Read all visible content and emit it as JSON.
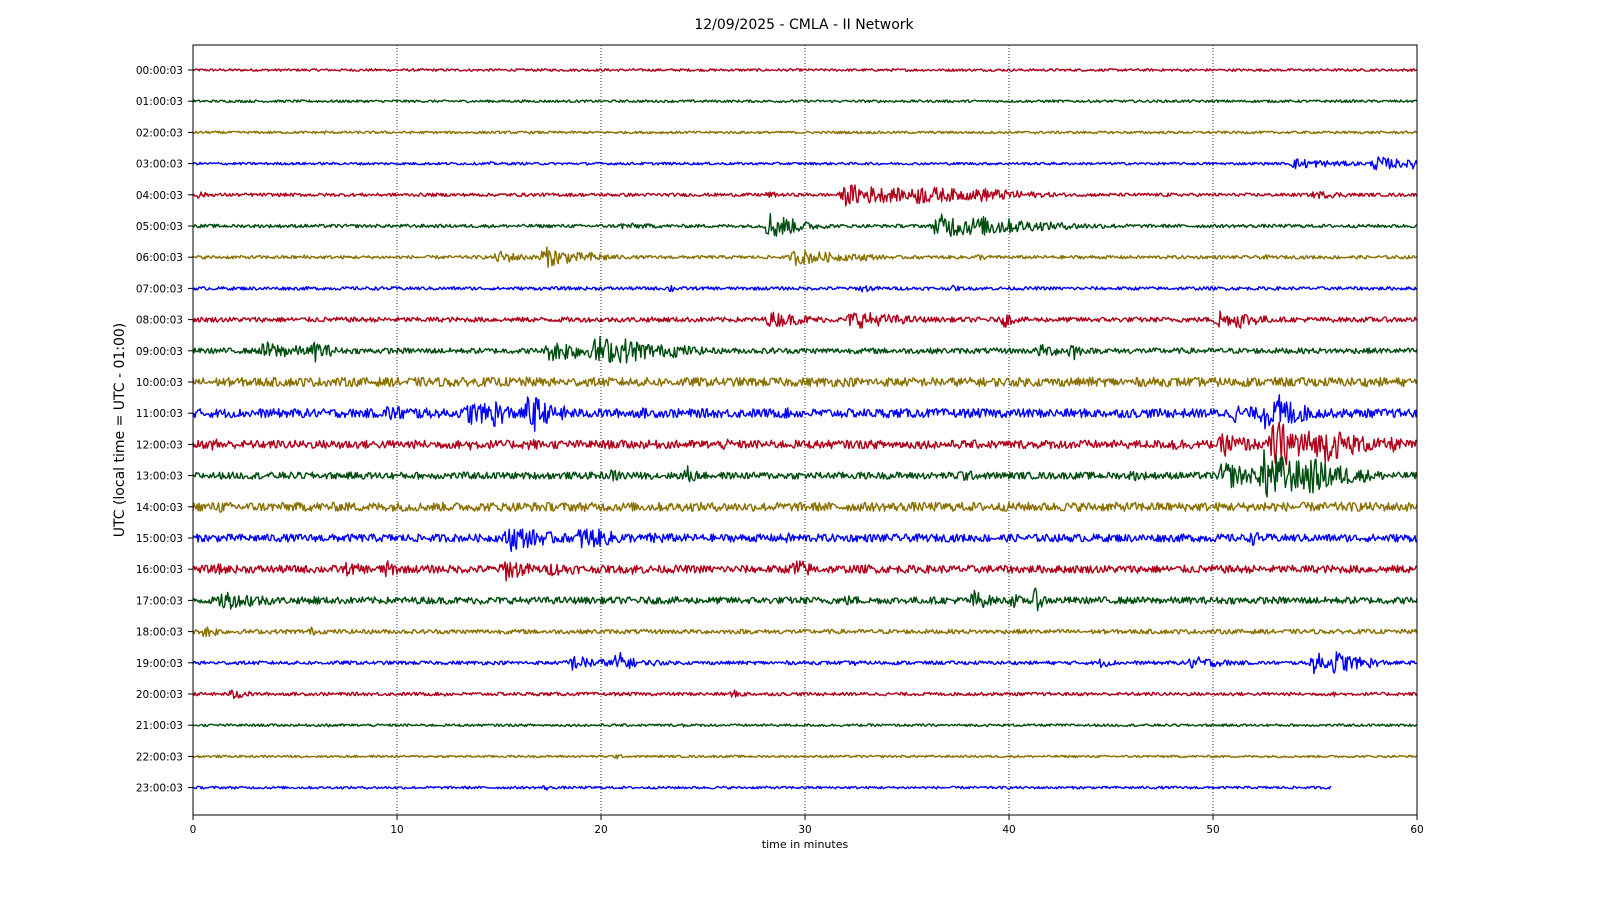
{
  "chart_data": {
    "type": "line",
    "title": "12/09/2025 - CMLA - II Network",
    "xlabel": "time in minutes",
    "ylabel": "UTC (local time = UTC - 01:00)",
    "xlim": [
      0,
      60
    ],
    "x_ticks": [
      0,
      10,
      20,
      30,
      40,
      50,
      60
    ],
    "grid": "vertical dotted lines at x ticks",
    "last_row_end_minute": 55.8,
    "color_cycle": [
      "#b0001a",
      "#004d0f",
      "#8a7000",
      "#0000ff"
    ],
    "series": [
      {
        "label": "00:00:03",
        "base_amplitude": 0.09,
        "events": []
      },
      {
        "label": "01:00:03",
        "base_amplitude": 0.09,
        "events": []
      },
      {
        "label": "02:00:03",
        "base_amplitude": 0.09,
        "events": [
          {
            "t": 6.5,
            "amp": 0.15,
            "dur": 0.3
          }
        ]
      },
      {
        "label": "03:00:03",
        "base_amplitude": 0.09,
        "events": [
          {
            "t": 14.6,
            "amp": 0.15,
            "dur": 0.3
          },
          {
            "t": 54.0,
            "amp": 0.4,
            "dur": 3.0
          },
          {
            "t": 58.0,
            "amp": 0.55,
            "dur": 2.0
          },
          {
            "t": 59.8,
            "amp": 0.5,
            "dur": 1.0
          }
        ]
      },
      {
        "label": "04:00:03",
        "base_amplitude": 0.12,
        "events": [
          {
            "t": 0.3,
            "amp": 0.3,
            "dur": 0.6
          },
          {
            "t": 28.2,
            "amp": 0.25,
            "dur": 1.0
          },
          {
            "t": 32.0,
            "amp": 0.8,
            "dur": 5.0
          },
          {
            "t": 35.5,
            "amp": 0.7,
            "dur": 4.0
          },
          {
            "t": 38.5,
            "amp": 0.55,
            "dur": 3.0
          },
          {
            "t": 47.8,
            "amp": 0.18,
            "dur": 0.4
          },
          {
            "t": 55.0,
            "amp": 0.3,
            "dur": 2.5
          }
        ]
      },
      {
        "label": "05:00:03",
        "base_amplitude": 0.12,
        "events": [
          {
            "t": 21.0,
            "amp": 0.25,
            "dur": 3.0
          },
          {
            "t": 28.3,
            "amp": 1.1,
            "dur": 1.5
          },
          {
            "t": 36.5,
            "amp": 0.9,
            "dur": 5.0
          },
          {
            "t": 38.8,
            "amp": 0.8,
            "dur": 3.0
          }
        ]
      },
      {
        "label": "06:00:03",
        "base_amplitude": 0.12,
        "events": [
          {
            "t": 5.5,
            "amp": 0.2,
            "dur": 0.5
          },
          {
            "t": 15.0,
            "amp": 0.5,
            "dur": 1.5
          },
          {
            "t": 17.2,
            "amp": 0.8,
            "dur": 2.0
          },
          {
            "t": 19.5,
            "amp": 0.4,
            "dur": 1.5
          },
          {
            "t": 29.5,
            "amp": 0.6,
            "dur": 3.0
          },
          {
            "t": 32.8,
            "amp": 0.3,
            "dur": 1.5
          },
          {
            "t": 38.5,
            "amp": 0.25,
            "dur": 1.0
          },
          {
            "t": 52.5,
            "amp": 0.2,
            "dur": 0.6
          }
        ]
      },
      {
        "label": "07:00:03",
        "base_amplitude": 0.12,
        "events": [
          {
            "t": 23.4,
            "amp": 0.35,
            "dur": 0.4
          },
          {
            "t": 32.8,
            "amp": 0.3,
            "dur": 1.0
          },
          {
            "t": 37.3,
            "amp": 0.25,
            "dur": 0.5
          }
        ]
      },
      {
        "label": "08:00:03",
        "base_amplitude": 0.18,
        "events": [
          {
            "t": 28.3,
            "amp": 0.6,
            "dur": 2.5
          },
          {
            "t": 32.3,
            "amp": 0.7,
            "dur": 3.0
          },
          {
            "t": 39.8,
            "amp": 0.6,
            "dur": 0.6
          },
          {
            "t": 50.3,
            "amp": 0.9,
            "dur": 0.6
          },
          {
            "t": 51.2,
            "amp": 0.7,
            "dur": 1.5
          }
        ]
      },
      {
        "label": "09:00:03",
        "base_amplitude": 0.2,
        "events": [
          {
            "t": 3.5,
            "amp": 0.7,
            "dur": 2.5
          },
          {
            "t": 6.0,
            "amp": 0.8,
            "dur": 1.0
          },
          {
            "t": 17.5,
            "amp": 0.8,
            "dur": 4.0
          },
          {
            "t": 19.8,
            "amp": 1.2,
            "dur": 2.0
          },
          {
            "t": 21.0,
            "amp": 1.0,
            "dur": 2.5
          },
          {
            "t": 23.5,
            "amp": 0.5,
            "dur": 2.5
          },
          {
            "t": 28.2,
            "amp": 0.3,
            "dur": 1.0
          },
          {
            "t": 41.5,
            "amp": 0.5,
            "dur": 2.0
          },
          {
            "t": 43.1,
            "amp": 0.9,
            "dur": 0.4
          }
        ]
      },
      {
        "label": "10:00:03",
        "base_amplitude": 0.32,
        "events": [
          {
            "t": 12.5,
            "amp": 0.4,
            "dur": 2.0
          },
          {
            "t": 16.0,
            "amp": 0.45,
            "dur": 1.5
          },
          {
            "t": 58.5,
            "amp": 0.3,
            "dur": 2.0
          }
        ]
      },
      {
        "label": "11:00:03",
        "base_amplitude": 0.32,
        "events": [
          {
            "t": 9.5,
            "amp": 0.6,
            "dur": 4.0
          },
          {
            "t": 13.5,
            "amp": 0.9,
            "dur": 3.0
          },
          {
            "t": 14.6,
            "amp": 1.3,
            "dur": 1.0
          },
          {
            "t": 16.5,
            "amp": 1.7,
            "dur": 1.0
          },
          {
            "t": 18.0,
            "amp": 0.6,
            "dur": 1.5
          },
          {
            "t": 22.0,
            "amp": 0.4,
            "dur": 2.0
          },
          {
            "t": 29.0,
            "amp": 0.4,
            "dur": 2.0
          },
          {
            "t": 51.0,
            "amp": 0.7,
            "dur": 2.0
          },
          {
            "t": 52.5,
            "amp": 1.2,
            "dur": 1.5
          },
          {
            "t": 53.2,
            "amp": 1.4,
            "dur": 1.5
          }
        ]
      },
      {
        "label": "12:00:03",
        "base_amplitude": 0.3,
        "events": [
          {
            "t": 1.0,
            "amp": 0.5,
            "dur": 1.5
          },
          {
            "t": 7.0,
            "amp": 0.45,
            "dur": 2.0
          },
          {
            "t": 13.5,
            "amp": 0.45,
            "dur": 2.0
          },
          {
            "t": 16.5,
            "amp": 0.5,
            "dur": 1.0
          },
          {
            "t": 26.0,
            "amp": 0.4,
            "dur": 2.0
          },
          {
            "t": 43.0,
            "amp": 0.45,
            "dur": 2.0
          },
          {
            "t": 48.0,
            "amp": 0.5,
            "dur": 2.0
          },
          {
            "t": 50.5,
            "amp": 0.9,
            "dur": 2.0
          },
          {
            "t": 53.0,
            "amp": 1.8,
            "dur": 3.0
          },
          {
            "t": 55.5,
            "amp": 1.3,
            "dur": 2.5
          },
          {
            "t": 58.8,
            "amp": 0.6,
            "dur": 1.0
          }
        ]
      },
      {
        "label": "13:00:03",
        "base_amplitude": 0.25,
        "events": [
          {
            "t": 20.5,
            "amp": 0.45,
            "dur": 2.0
          },
          {
            "t": 24.2,
            "amp": 0.8,
            "dur": 0.6
          },
          {
            "t": 37.5,
            "amp": 0.5,
            "dur": 1.5
          },
          {
            "t": 46.0,
            "amp": 0.4,
            "dur": 2.0
          },
          {
            "t": 50.5,
            "amp": 1.1,
            "dur": 2.0
          },
          {
            "t": 52.5,
            "amp": 1.9,
            "dur": 3.0
          },
          {
            "t": 54.5,
            "amp": 1.5,
            "dur": 2.5
          },
          {
            "t": 56.0,
            "amp": 0.8,
            "dur": 1.5
          }
        ]
      },
      {
        "label": "14:00:03",
        "base_amplitude": 0.32,
        "events": [
          {
            "t": 1.3,
            "amp": 0.5,
            "dur": 0.5
          },
          {
            "t": 7.5,
            "amp": 0.4,
            "dur": 0.5
          },
          {
            "t": 17.0,
            "amp": 0.4,
            "dur": 0.5
          },
          {
            "t": 30.0,
            "amp": 0.35,
            "dur": 1.0
          },
          {
            "t": 52.5,
            "amp": 0.5,
            "dur": 1.5
          }
        ]
      },
      {
        "label": "15:00:03",
        "base_amplitude": 0.28,
        "events": [
          {
            "t": 15.5,
            "amp": 1.0,
            "dur": 2.5
          },
          {
            "t": 19.0,
            "amp": 0.9,
            "dur": 2.5
          },
          {
            "t": 22.5,
            "amp": 0.5,
            "dur": 2.0
          },
          {
            "t": 29.0,
            "amp": 0.4,
            "dur": 2.5
          },
          {
            "t": 33.5,
            "amp": 0.35,
            "dur": 2.0
          },
          {
            "t": 52.0,
            "amp": 0.6,
            "dur": 0.5
          }
        ]
      },
      {
        "label": "16:00:03",
        "base_amplitude": 0.28,
        "events": [
          {
            "t": 1.3,
            "amp": 0.45,
            "dur": 1.0
          },
          {
            "t": 7.5,
            "amp": 0.5,
            "dur": 2.0
          },
          {
            "t": 9.4,
            "amp": 0.7,
            "dur": 1.0
          },
          {
            "t": 15.3,
            "amp": 0.9,
            "dur": 1.5
          },
          {
            "t": 17.5,
            "amp": 0.5,
            "dur": 3.0
          },
          {
            "t": 21.5,
            "amp": 0.4,
            "dur": 2.5
          },
          {
            "t": 29.5,
            "amp": 0.9,
            "dur": 1.0
          },
          {
            "t": 33.0,
            "amp": 0.4,
            "dur": 1.0
          }
        ]
      },
      {
        "label": "17:00:03",
        "base_amplitude": 0.25,
        "events": [
          {
            "t": 1.5,
            "amp": 0.9,
            "dur": 1.0
          },
          {
            "t": 2.5,
            "amp": 0.6,
            "dur": 2.0
          },
          {
            "t": 6.0,
            "amp": 0.4,
            "dur": 0.5
          },
          {
            "t": 14.0,
            "amp": 0.35,
            "dur": 1.0
          },
          {
            "t": 32.0,
            "amp": 0.4,
            "dur": 2.0
          },
          {
            "t": 38.3,
            "amp": 0.8,
            "dur": 1.0
          },
          {
            "t": 40.2,
            "amp": 0.6,
            "dur": 0.5
          },
          {
            "t": 41.3,
            "amp": 0.9,
            "dur": 0.5
          }
        ]
      },
      {
        "label": "18:00:03",
        "base_amplitude": 0.16,
        "events": [
          {
            "t": 0.6,
            "amp": 0.5,
            "dur": 1.0
          },
          {
            "t": 5.8,
            "amp": 0.35,
            "dur": 0.4
          },
          {
            "t": 14.0,
            "amp": 0.2,
            "dur": 1.0
          }
        ]
      },
      {
        "label": "19:00:03",
        "base_amplitude": 0.13,
        "events": [
          {
            "t": 18.5,
            "amp": 0.6,
            "dur": 2.0
          },
          {
            "t": 20.8,
            "amp": 0.9,
            "dur": 0.8
          },
          {
            "t": 22.5,
            "amp": 0.3,
            "dur": 1.0
          },
          {
            "t": 32.5,
            "amp": 0.25,
            "dur": 0.5
          },
          {
            "t": 44.5,
            "amp": 0.35,
            "dur": 1.0
          },
          {
            "t": 49.0,
            "amp": 0.5,
            "dur": 2.0
          },
          {
            "t": 55.0,
            "amp": 0.9,
            "dur": 0.8
          },
          {
            "t": 56.0,
            "amp": 0.9,
            "dur": 1.5
          },
          {
            "t": 57.7,
            "amp": 0.4,
            "dur": 1.0
          }
        ]
      },
      {
        "label": "20:00:03",
        "base_amplitude": 0.12,
        "events": [
          {
            "t": 2.0,
            "amp": 0.45,
            "dur": 0.8
          },
          {
            "t": 12.3,
            "amp": 0.2,
            "dur": 0.5
          },
          {
            "t": 26.5,
            "amp": 0.3,
            "dur": 1.0
          },
          {
            "t": 56.0,
            "amp": 0.2,
            "dur": 0.5
          }
        ]
      },
      {
        "label": "21:00:03",
        "base_amplitude": 0.09,
        "events": [
          {
            "t": 6.8,
            "amp": 0.25,
            "dur": 0.3
          },
          {
            "t": 24.0,
            "amp": 0.2,
            "dur": 0.3
          }
        ]
      },
      {
        "label": "22:00:03",
        "base_amplitude": 0.08,
        "events": [
          {
            "t": 20.8,
            "amp": 0.2,
            "dur": 0.3
          }
        ]
      },
      {
        "label": "23:00:03",
        "base_amplitude": 0.09,
        "events": [
          {
            "t": 17.3,
            "amp": 0.25,
            "dur": 0.3
          },
          {
            "t": 55.5,
            "amp": 0.12,
            "dur": 0.3
          }
        ]
      }
    ]
  }
}
